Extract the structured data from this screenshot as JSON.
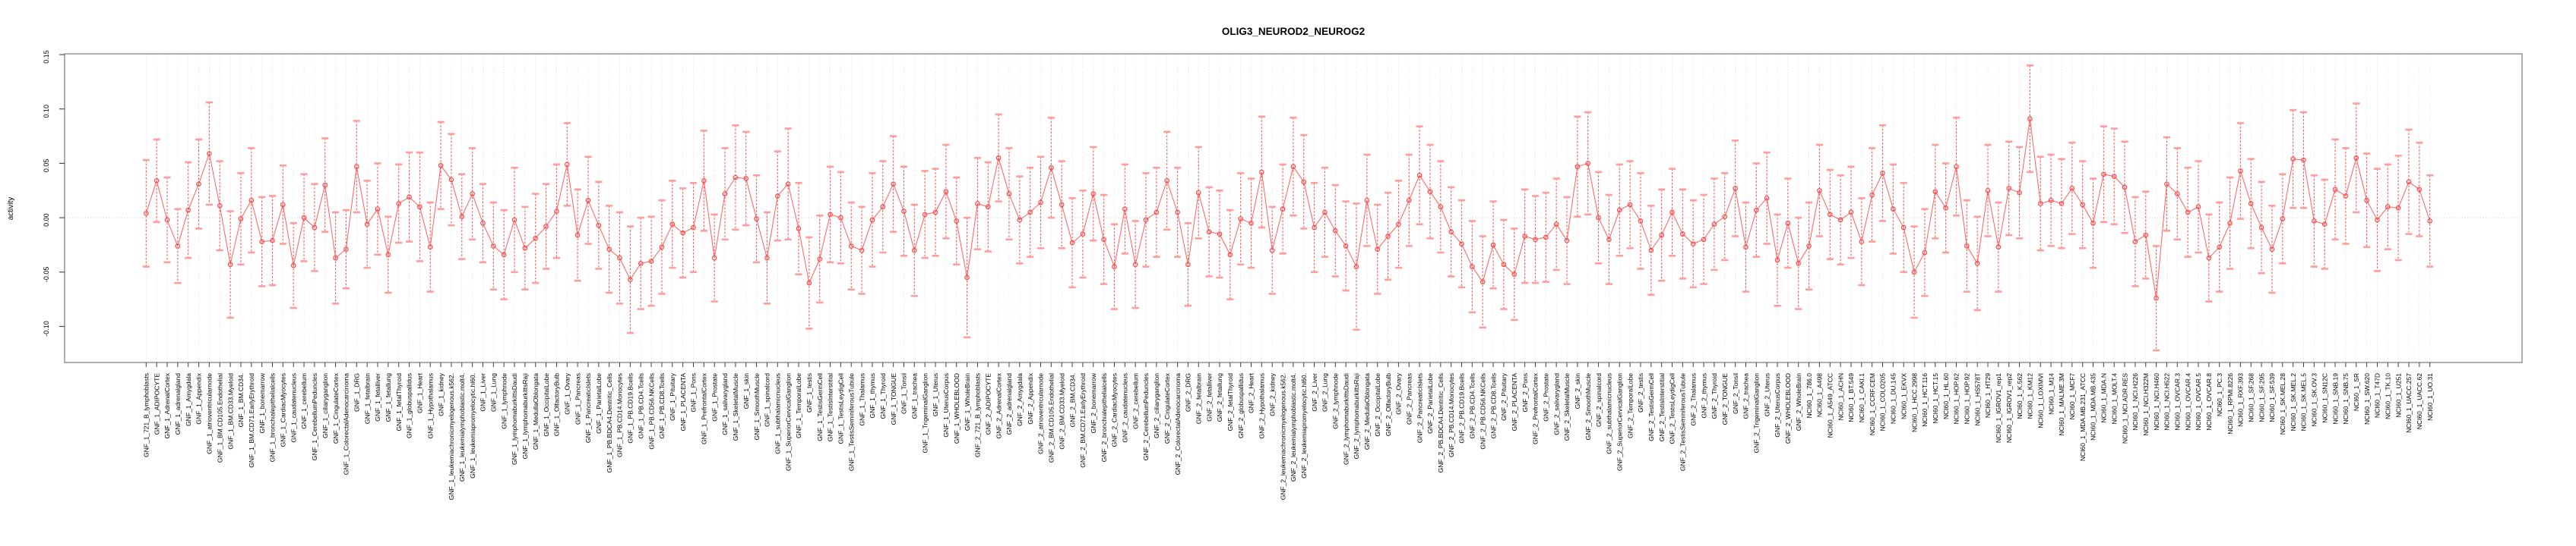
{
  "chart_data": {
    "type": "scatter",
    "variant": "points-with-error-bars",
    "title": "OLIG3_NEUROD2_NEUROG2",
    "ylabel": "activity",
    "xlabel": "",
    "ylim": [
      -0.133,
      0.151
    ],
    "yticks": [
      0.15,
      0.1,
      0.05,
      0.0,
      -0.05,
      -0.1
    ],
    "ytick_labels": [
      "0.15",
      "0.10",
      "0.05",
      "0.00",
      "-0.05",
      "-0.10"
    ],
    "grid": {
      "vertical_dotted_per_category": true,
      "horizontal_zero_line": true
    },
    "legend_position": "none",
    "colors": {
      "marker": "#ff4545",
      "series_line": "#ff5e5e",
      "error_bar_line": "#ff5252",
      "error_bar_cap": "#ff9d9d",
      "grid_line": "#d9d9d9",
      "zero_line": "#cfcfcf",
      "plot_border": "#9a9a9a",
      "axis_tick": "#404040",
      "text": "#000000"
    },
    "categories": [
      "GNF_1_721_B_lymphoblasts",
      "GNF_1_ADIPOCYTE",
      "GNF_1_AdrenalCortex",
      "GNF_1_adrenalgland",
      "GNF_1_Amygdala",
      "GNF_1_Appendix",
      "GNF_1_atrioventricularnode",
      "GNF_1_BM.CD105.Endothelial",
      "GNF_1_BM.CD33.Myeloid",
      "GNF_1_BM.CD34.",
      "GNF_1_BM.CD71.EarlyErythroid",
      "GNF_1_bonemarrow",
      "GNF_1_bronchialepithelialcells",
      "GNF_1_CardiacMyocytes",
      "GNF_1_caudatenucleus",
      "GNF_1_cerebellum",
      "GNF_1_CerebellumPeduncles",
      "GNF_1_ciliaryganglion",
      "GNF_1_CingulateCortex",
      "GNF_1_ColorectalAdenocarcinoma",
      "GNF_1_DRG",
      "GNF_1_fetalbrain",
      "GNF_1_fetalliver",
      "GNF_1_fetallung",
      "GNF_1_fetalThyroid",
      "GNF_1_globuspallidus",
      "GNF_1_Heart",
      "GNF_1_Hypothalamus",
      "GNF_1_kidney",
      "GNF_1_leukemiachronicmyelogenous.k562.",
      "GNF_1_leukemialymphoblastic.molt4.",
      "GNF_1_leukemiapromyelocytic.hl60.",
      "GNF_1_Liver",
      "GNF_1_Lung",
      "GNF_1_lymphnode",
      "GNF_1_lymphomaburkittsDaudi",
      "GNF_1_lymphomaburkittsRaji",
      "GNF_1_MedullaOblongata",
      "GNF_1_OccipitalLobe",
      "GNF_1_OlfactoryBulb",
      "GNF_1_Ovary",
      "GNF_1_Pancreas",
      "GNF_1_PancreaticIslets",
      "GNF_1_ParietalLobe",
      "GNF_1_PB.BDCA4.Dentritic_Cells",
      "GNF_1_PB.CD14.Monocytes",
      "GNF_1_PB.CD19.Bcells",
      "GNF_1_PB.CD4.Tcells",
      "GNF_1_PB.CD56.NKCells",
      "GNF_1_PB.CD8.Tcells",
      "GNF_1_Pituitary",
      "GNF_1_PLACENTA",
      "GNF_1_Pons",
      "GNF_1_PrefrontalCortex",
      "GNF_1_Prostate",
      "GNF_1_salivarygland",
      "GNF_1_SkeletalMuscle",
      "GNF_1_skin",
      "GNF_1_SmoothMuscle",
      "GNF_1_spinalcord",
      "GNF_1_subthalamicnucleus",
      "GNF_1_SuperiorCervicalGanglion",
      "GNF_1_TemporalLobe",
      "GNF_1_testis",
      "GNF_1_TestisGermCell",
      "GNF_1_TestisInterstitial",
      "GNF_1_TestisLeydigCell",
      "GNF_1_TestisSeminiferousTubule",
      "GNF_1_Thalamus",
      "GNF_1_thymus",
      "GNF_1_Thyroid",
      "GNF_1_TONGUE",
      "GNF_1_Tonsil",
      "GNF_1_trachea",
      "GNF_1_TrigeminalGanglion",
      "GNF_1_Uterus",
      "GNF_1_UterusCorpus",
      "GNF_1_WHOLEBLOOD",
      "GNF_1_WholeBrain",
      "GNF_2_721_B_lymphoblasts",
      "GNF_2_ADIPOCYTE",
      "GNF_2_AdrenalCortex",
      "GNF_2_adrenalgland",
      "GNF_2_Amygdala",
      "GNF_2_Appendix",
      "GNF_2_atrioventricularnode",
      "GNF_2_BM.CD105.Endothelial",
      "GNF_2_BM.CD33.Myeloid",
      "GNF_2_BM.CD34.",
      "GNF_2_BM.CD71.EarlyErythroid",
      "GNF_2_bonemarrow",
      "GNF_2_bronchialepithelialcells",
      "GNF_2_CardiacMyocytes",
      "GNF_2_caudatenucleus",
      "GNF_2_cerebellum",
      "GNF_2_CerebellumPeduncles",
      "GNF_2_ciliaryganglion",
      "GNF_2_CingulateCortex",
      "GNF_2_ColorectalAdenocarcinoma",
      "GNF_2_DRG",
      "GNF_2_fetalbrain",
      "GNF_2_fetalliver",
      "GNF_2_fetallung",
      "GNF_2_fetalThyroid",
      "GNF_2_globuspallidus",
      "GNF_2_Heart",
      "GNF_2_Hypothalamus",
      "GNF_2_kidney",
      "GNF_2_leukemiachronicmyelogenous.k562.",
      "GNF_2_leukemialymphoblastic.molt4.",
      "GNF_2_leukemiapromyelocytic.hl60.",
      "GNF_2_Liver",
      "GNF_2_Lung",
      "GNF_2_lymphnode",
      "GNF_2_lymphomaburkittsDaudi",
      "GNF_2_lymphomaburkittsRaji",
      "GNF_2_MedullaOblongata",
      "GNF_2_OccipitalLobe",
      "GNF_2_OlfactoryBulb",
      "GNF_2_Ovary",
      "GNF_2_Pancreas",
      "GNF_2_PancreaticIslets",
      "GNF_2_ParietalLobe",
      "GNF_2_PB.BDCA4.Dentritic_Cells",
      "GNF_2_PB.CD14.Monocytes",
      "GNF_2_PB.CD19.Bcells",
      "GNF_2_PB.CD4.Tcells",
      "GNF_2_PB.CD56.NKCells",
      "GNF_2_PB.CD8.Tcells",
      "GNF_2_Pituitary",
      "GNF_2_PLACENTA",
      "GNF_2_Pons",
      "GNF_2_PrefrontalCortex",
      "GNF_2_Prostate",
      "GNF_2_salivarygland",
      "GNF_2_SkeletalMuscle",
      "GNF_2_skin",
      "GNF_2_SmoothMuscle",
      "GNF_2_spinalcord",
      "GNF_2_subthalamicnucleus",
      "GNF_2_SuperiorCervicalGanglion",
      "GNF_2_TemporalLobe",
      "GNF_2_testis",
      "GNF_2_TestisGermCell",
      "GNF_2_TestisInterstitial",
      "GNF_2_TestisLeydigCell",
      "GNF_2_TestisSeminiferousTubule",
      "GNF_2_Thalamus",
      "GNF_2_thymus",
      "GNF_2_Thyroid",
      "GNF_2_TONGUE",
      "GNF_2_Tonsil",
      "GNF_2_trachea",
      "GNF_2_TrigeminalGanglion",
      "GNF_2_Uterus",
      "GNF_2_UterusCorpus",
      "GNF_2_WHOLEBLOOD",
      "GNF_2_WholeBrain",
      "NCI60_1_786.0",
      "NCI60_1_A498",
      "NCI60_1_A549_ATCC",
      "NCI60_1_ACHN",
      "NCI60_1_BT.549",
      "NCI60_1_CAKI.1",
      "NCI60_1_CCRF.CEM",
      "NCI60_1_COLO205",
      "NCI60_1_DU.145",
      "NCI60_1_EKVX",
      "NCI60_1_HCC.2998",
      "NCI60_1_HCT.116",
      "NCI60_1_HCT.15",
      "NCI60_1_HL.60",
      "NCI60_1_HOP.62",
      "NCI60_1_HOP.92",
      "NCI60_1_HS578T",
      "NCI60_1_HT29",
      "NCI60_1_IGROV1_rep1",
      "NCI60_1_IGROV1_rep2",
      "NCI60_1_K.562",
      "NCI60_1_KM12",
      "NCI60_1_LOXIMVI",
      "NCI60_1_M14",
      "NCI60_1_MALME.3M",
      "NCI60_1_MCF7",
      "NCI60_1_MDA.MB.231_ATCC",
      "NCI60_1_MDA.MB.435",
      "NCI60_1_MDA.N",
      "NCI60_1_MOLT.4",
      "NCI60_1_NCI.ADR.RES",
      "NCI60_1_NCI.H226",
      "NCI60_1_NCI.H322M",
      "NCI60_1_NCI.H460",
      "NCI60_1_NCI.H522",
      "NCI60_1_OVCAR.3",
      "NCI60_1_OVCAR.4",
      "NCI60_1_OVCAR.5",
      "NCI60_1_OVCAR.8",
      "NCI60_1_PC.3",
      "NCI60_1_RPMI.8226",
      "NCI60_1_RXF.393",
      "NCI60_1_SF.268",
      "NCI60_1_SF.295",
      "NCI60_1_SF.539",
      "NCI60_1_SK.MEL.28",
      "NCI60_1_SK.MEL.2",
      "NCI60_1_SK.MEL.5",
      "NCI60_1_SK.OV.3",
      "NCI60_1_SN12C",
      "NCI60_1_SNB.19",
      "NCI60_1_SNB.75",
      "NCI60_1_SR",
      "NCI60_1_SW.620",
      "NCI60_1_T47D",
      "NCI60_1_TK.10",
      "NCI60_1_U251",
      "NCI60_1_UACC.257",
      "NCI60_1_UACC.62",
      "NCI60_1_UO.31"
    ],
    "series": [
      {
        "name": "activity",
        "means": [
          0.004,
          0.034,
          -0.002,
          -0.026,
          0.007,
          0.031,
          0.059,
          0.011,
          -0.043,
          -0.001,
          0.016,
          -0.022,
          -0.021,
          0.012,
          -0.044,
          0.0,
          -0.009,
          0.03,
          -0.037,
          -0.029,
          0.047,
          -0.006,
          0.008,
          -0.034,
          0.013,
          0.019,
          0.01,
          -0.027,
          0.048,
          0.035,
          0.001,
          0.022,
          -0.005,
          -0.026,
          -0.034,
          -0.002,
          -0.028,
          -0.019,
          -0.008,
          0.006,
          0.049,
          -0.016,
          0.016,
          -0.007,
          -0.029,
          -0.037,
          -0.057,
          -0.042,
          -0.04,
          -0.027,
          -0.006,
          -0.014,
          -0.009,
          0.034,
          -0.037,
          0.022,
          0.037,
          0.036,
          -0.001,
          -0.037,
          0.02,
          0.031,
          -0.01,
          -0.06,
          -0.038,
          0.003,
          0.0,
          -0.026,
          -0.03,
          -0.002,
          0.01,
          0.031,
          0.006,
          -0.03,
          0.003,
          0.005,
          0.024,
          -0.003,
          -0.055,
          0.013,
          0.01,
          0.055,
          0.022,
          -0.002,
          0.005,
          0.014,
          0.046,
          0.012,
          -0.023,
          -0.015,
          0.022,
          -0.02,
          -0.045,
          0.008,
          -0.043,
          -0.002,
          0.005,
          0.034,
          0.005,
          -0.043,
          0.023,
          -0.013,
          -0.015,
          -0.034,
          -0.001,
          -0.005,
          0.042,
          -0.03,
          0.008,
          0.047,
          0.033,
          -0.009,
          0.005,
          -0.012,
          -0.026,
          -0.045,
          0.016,
          -0.029,
          -0.017,
          -0.006,
          0.016,
          0.039,
          0.024,
          0.01,
          -0.013,
          -0.024,
          -0.045,
          -0.059,
          -0.025,
          -0.043,
          -0.052,
          -0.017,
          -0.02,
          -0.018,
          -0.006,
          -0.021,
          0.047,
          0.05,
          0.0,
          -0.02,
          0.007,
          0.012,
          -0.003,
          -0.03,
          -0.016,
          0.005,
          -0.015,
          -0.024,
          -0.02,
          -0.006,
          0.001,
          0.027,
          -0.027,
          0.007,
          0.018,
          -0.039,
          -0.005,
          -0.042,
          -0.026,
          0.025,
          0.003,
          -0.002,
          0.005,
          -0.022,
          0.021,
          0.041,
          0.008,
          -0.009,
          -0.05,
          -0.032,
          0.024,
          0.009,
          0.047,
          -0.026,
          -0.042,
          0.025,
          -0.027,
          0.027,
          0.023,
          0.091,
          0.013,
          0.016,
          0.013,
          0.027,
          0.012,
          -0.005,
          0.04,
          0.038,
          0.028,
          -0.022,
          -0.016,
          -0.074,
          0.031,
          0.022,
          0.005,
          0.01,
          -0.037,
          -0.027,
          -0.005,
          0.043,
          0.013,
          -0.009,
          -0.029,
          -0.001,
          0.054,
          0.053,
          -0.003,
          -0.006,
          0.026,
          0.02,
          0.055,
          0.016,
          -0.002,
          0.01,
          0.009,
          0.033,
          0.026,
          -0.003
        ],
        "errors": [
          0.049,
          0.038,
          0.039,
          0.034,
          0.044,
          0.041,
          0.047,
          0.041,
          0.049,
          0.042,
          0.048,
          0.041,
          0.041,
          0.036,
          0.039,
          0.04,
          0.04,
          0.043,
          0.042,
          0.036,
          0.042,
          0.04,
          0.042,
          0.035,
          0.036,
          0.041,
          0.05,
          0.041,
          0.04,
          0.042,
          0.039,
          0.042,
          0.036,
          0.04,
          0.041,
          0.048,
          0.038,
          0.041,
          0.039,
          0.043,
          0.038,
          0.042,
          0.04,
          0.04,
          0.04,
          0.042,
          0.049,
          0.042,
          0.041,
          0.043,
          0.04,
          0.041,
          0.041,
          0.046,
          0.04,
          0.042,
          0.048,
          0.043,
          0.04,
          0.042,
          0.041,
          0.051,
          0.042,
          0.042,
          0.04,
          0.044,
          0.042,
          0.04,
          0.04,
          0.043,
          0.042,
          0.044,
          0.041,
          0.042,
          0.04,
          0.04,
          0.043,
          0.04,
          0.055,
          0.042,
          0.041,
          0.04,
          0.042,
          0.04,
          0.041,
          0.042,
          0.046,
          0.04,
          0.041,
          0.04,
          0.043,
          0.041,
          0.039,
          0.041,
          0.04,
          0.043,
          0.041,
          0.045,
          0.041,
          0.038,
          0.042,
          0.041,
          0.04,
          0.041,
          0.042,
          0.041,
          0.051,
          0.04,
          0.041,
          0.045,
          0.043,
          0.041,
          0.041,
          0.042,
          0.041,
          0.058,
          0.042,
          0.041,
          0.04,
          0.04,
          0.042,
          0.045,
          0.043,
          0.042,
          0.041,
          0.04,
          0.042,
          0.042,
          0.04,
          0.041,
          0.042,
          0.043,
          0.04,
          0.041,
          0.042,
          0.04,
          0.046,
          0.047,
          0.042,
          0.041,
          0.042,
          0.04,
          0.044,
          0.041,
          0.042,
          0.04,
          0.041,
          0.04,
          0.041,
          0.042,
          0.04,
          0.044,
          0.041,
          0.043,
          0.042,
          0.042,
          0.041,
          0.042,
          0.04,
          0.042,
          0.041,
          0.041,
          0.042,
          0.04,
          0.043,
          0.044,
          0.041,
          0.041,
          0.042,
          0.04,
          0.043,
          0.041,
          0.045,
          0.042,
          0.043,
          0.042,
          0.041,
          0.043,
          0.042,
          0.049,
          0.043,
          0.042,
          0.041,
          0.042,
          0.04,
          0.041,
          0.044,
          0.044,
          0.042,
          0.041,
          0.04,
          0.048,
          0.043,
          0.042,
          0.041,
          0.042,
          0.04,
          0.041,
          0.042,
          0.044,
          0.041,
          0.042,
          0.04,
          0.041,
          0.045,
          0.044,
          0.042,
          0.041,
          0.046,
          0.044,
          0.05,
          0.043,
          0.047,
          0.039,
          0.048,
          0.048,
          0.043,
          0.042
        ]
      }
    ]
  }
}
